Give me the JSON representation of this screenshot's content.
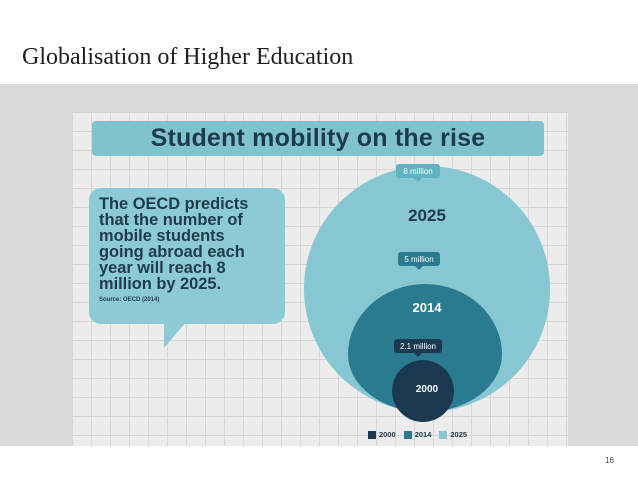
{
  "slide": {
    "title": "Globalisation of Higher Education",
    "page_number": "16"
  },
  "infographic": {
    "banner": "Student mobility on the rise",
    "callout": {
      "text": "The OECD predicts\nthat the number of\nmobile students\ngoing abroad each\nyear will reach 8\nmillion by 2025.",
      "source": "Source: OECD (2014)"
    },
    "circles": [
      {
        "year": "2025",
        "value_label": "8 million",
        "value_millions": 8,
        "color": "#86c7d2"
      },
      {
        "year": "2014",
        "value_label": "5 million",
        "value_millions": 5,
        "color": "#2a7b8f"
      },
      {
        "year": "2000",
        "value_label": "2.1 million",
        "value_millions": 2.1,
        "color": "#1b3a52"
      }
    ],
    "legend": [
      {
        "label": "2000",
        "color": "#1b3a52"
      },
      {
        "label": "2014",
        "color": "#2a7b8f"
      },
      {
        "label": "2025",
        "color": "#86c7d2"
      }
    ]
  }
}
